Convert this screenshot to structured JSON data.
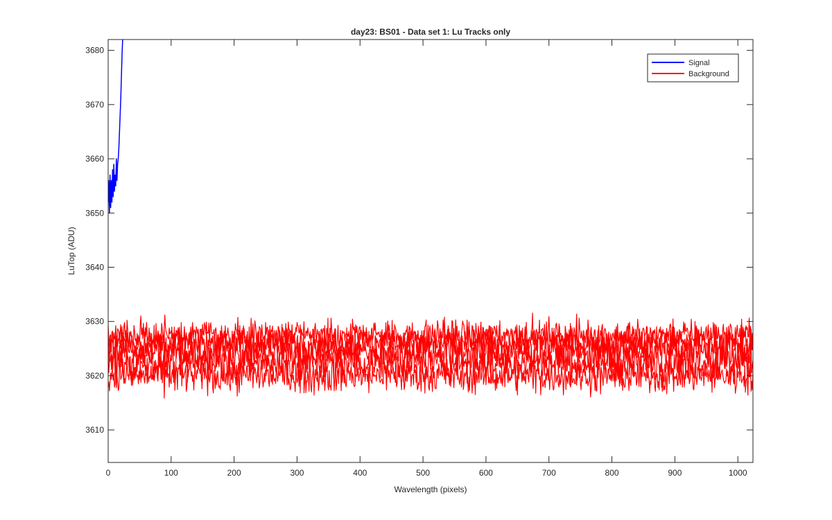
{
  "chart_data": {
    "type": "line",
    "title": "day23: BS01 - Data set 1: Lu Tracks only",
    "xlabel": "Wavelength (pixels)",
    "ylabel": "LuTop (ADU)",
    "xlim": [
      0,
      1024
    ],
    "ylim": [
      3604,
      3682
    ],
    "xticks": [
      0,
      100,
      200,
      300,
      400,
      500,
      600,
      700,
      800,
      900,
      1000
    ],
    "yticks": [
      3610,
      3620,
      3630,
      3640,
      3650,
      3660,
      3670,
      3680
    ],
    "grid": false,
    "box": true,
    "legend": {
      "position": "top-right",
      "entries": [
        "Signal",
        "Background"
      ]
    },
    "series": [
      {
        "name": "Signal",
        "color": "#0000ff",
        "x": [
          0,
          1,
          2,
          3,
          4,
          5,
          6,
          7,
          8,
          9,
          10,
          11,
          12,
          13,
          14,
          15,
          16,
          17,
          18,
          19,
          20,
          21,
          22,
          23
        ],
        "y": [
          3652,
          3656,
          3650,
          3657,
          3651,
          3656,
          3652,
          3658,
          3653,
          3659,
          3654,
          3657,
          3655,
          3660,
          3656,
          3659,
          3660,
          3662,
          3665,
          3668,
          3671,
          3675,
          3679,
          3682
        ]
      },
      {
        "name": "Background",
        "color": "#ff0000",
        "x_range": [
          0,
          1024
        ],
        "traces": [
          {
            "mean": 3627.5,
            "noise": 1.4
          },
          {
            "mean": 3626.0,
            "noise": 1.6
          },
          {
            "mean": 3624.5,
            "noise": 1.7
          },
          {
            "mean": 3622.5,
            "noise": 1.8
          },
          {
            "mean": 3620.0,
            "noise": 1.6
          }
        ],
        "observed_min": 3614.2,
        "observed_max": 3631.7
      }
    ]
  }
}
